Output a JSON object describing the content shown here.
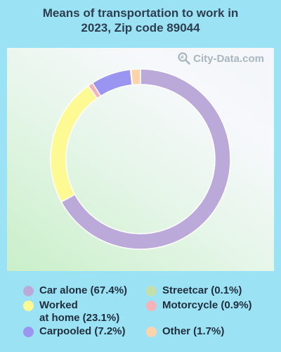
{
  "title": {
    "line1": "Means of transportation to work in",
    "line2": "2023, Zip code 89044"
  },
  "watermark": "City-Data.com",
  "colors": {
    "page_bg": "#9be3f4",
    "title": "#2c3e50"
  },
  "chart_data": {
    "type": "pie",
    "donut": true,
    "title": "Means of transportation to work in 2023, Zip code 89044",
    "legend_placement": "bottom",
    "slices": [
      {
        "label": "Car alone (67.4%)",
        "value": 67.4,
        "color": "#bba9da"
      },
      {
        "label": "Worked at home (23.1%)",
        "label_lines": [
          "Worked",
          "at home (23.1%)"
        ],
        "value": 23.1,
        "color": "#fdfa93"
      },
      {
        "label": "Motorcycle (0.9%)",
        "value": 0.9,
        "color": "#f4b3b8"
      },
      {
        "label": "Carpooled (7.2%)",
        "value": 7.2,
        "color": "#9a95f0"
      },
      {
        "label": "Streetcar (0.1%)",
        "value": 0.1,
        "color": "#c4dfaa"
      },
      {
        "label": "Other (1.7%)",
        "value": 1.7,
        "color": "#fdd3ac"
      }
    ],
    "legend_order": [
      "Car alone (67.4%)",
      "Streetcar (0.1%)",
      "Worked at home (23.1%)",
      "Motorcycle (0.9%)",
      "Carpooled (7.2%)",
      "Other (1.7%)"
    ]
  }
}
